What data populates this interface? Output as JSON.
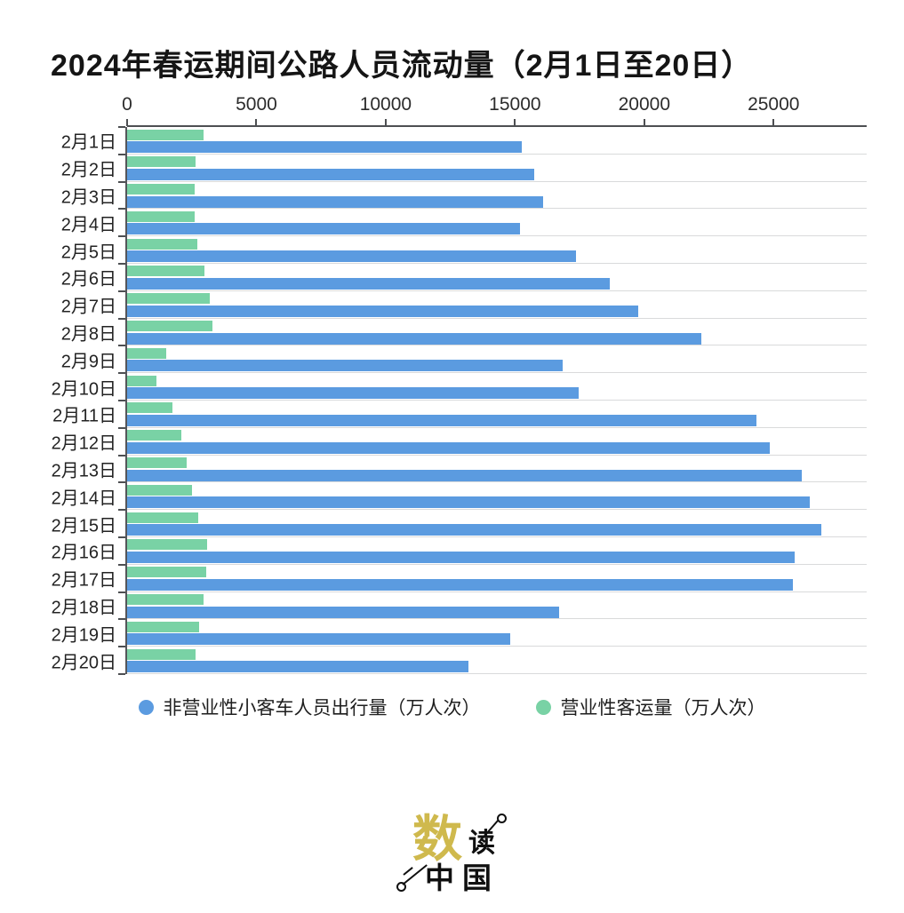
{
  "title": "2024年春运期间公路人员流动量（2月1日至20日）",
  "chart_data": {
    "type": "bar",
    "orientation": "horizontal",
    "title": "2024年春运期间公路人员流动量（2月1日至20日）",
    "categories": [
      "2月1日",
      "2月2日",
      "2月3日",
      "2月4日",
      "2月5日",
      "2月6日",
      "2月7日",
      "2月8日",
      "2月9日",
      "2月10日",
      "2月11日",
      "2月12日",
      "2月13日",
      "2月14日",
      "2月15日",
      "2月16日",
      "2月17日",
      "2月18日",
      "2月19日",
      "2月20日"
    ],
    "series": [
      {
        "name": "非营业性小客车人员出行量（万人次）",
        "color": "#5b9be0",
        "values": [
          15250,
          15750,
          16100,
          15200,
          17350,
          18650,
          19750,
          22200,
          16850,
          17450,
          24350,
          24850,
          26100,
          26400,
          26850,
          25800,
          25750,
          16700,
          14800,
          13200
        ]
      },
      {
        "name": "营业性客运量（万人次）",
        "color": "#79d2a5",
        "values": [
          2950,
          2650,
          2600,
          2600,
          2700,
          3000,
          3200,
          3300,
          1500,
          1150,
          1750,
          2100,
          2300,
          2500,
          2750,
          3100,
          3050,
          2950,
          2800,
          2650
        ]
      }
    ],
    "x_ticks": [
      0,
      5000,
      10000,
      15000,
      20000,
      25000
    ],
    "x_max": 28600,
    "bar_order_top_to_bottom": [
      "营业性客运量（万人次）",
      "非营业性小客车人员出行量（万人次）"
    ],
    "legend_position": "bottom",
    "grid": "category-separator-lines",
    "axis_color": "#4d4f52",
    "grid_color": "#d9dadb"
  },
  "logo": {
    "char_shu": "数",
    "char_du": "读",
    "chars_zhongguo": "中国"
  }
}
